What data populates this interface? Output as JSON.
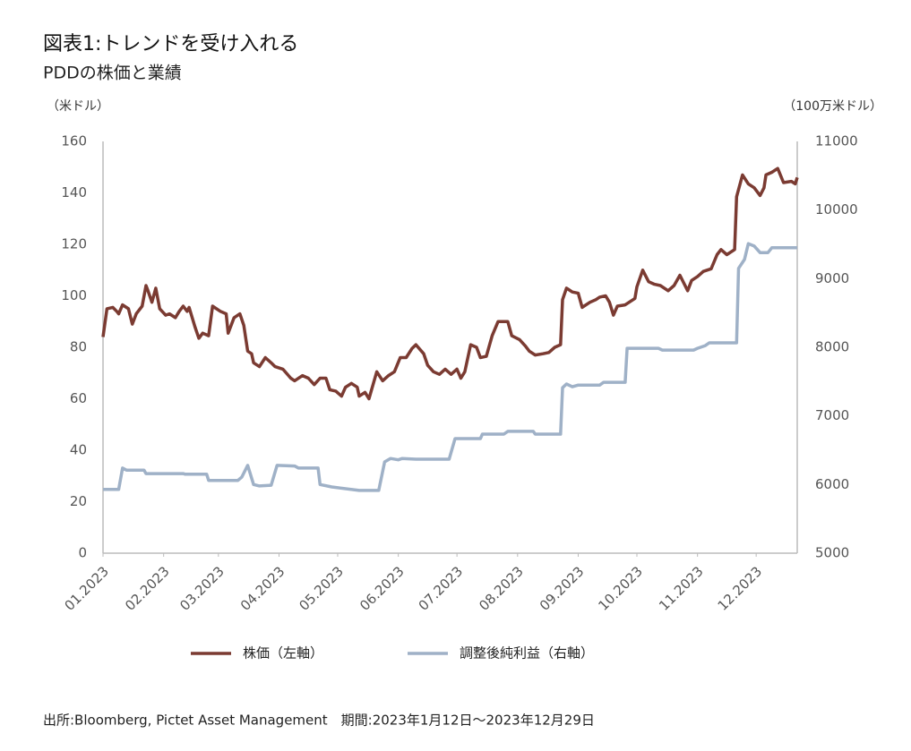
{
  "chart_data": {
    "type": "line",
    "title": "図表1:トレンドを受け入れる",
    "subtitle": "PDDの株価と業績",
    "y_label": "（米ドル）",
    "y2_label": "（100万米ドル）",
    "source": "出所:Bloomberg, Pictet Asset Management　期間:2023年1月12日～2023年12月29日",
    "xlim": [
      0,
      355
    ],
    "xticks": [
      {
        "value": 0,
        "label": "01.2023"
      },
      {
        "value": 31,
        "label": "02.2023"
      },
      {
        "value": 59,
        "label": "03.2023"
      },
      {
        "value": 90,
        "label": "04.2023"
      },
      {
        "value": 120,
        "label": "05.2023"
      },
      {
        "value": 151,
        "label": "06.2023"
      },
      {
        "value": 181,
        "label": "07.2023"
      },
      {
        "value": 212,
        "label": "08.2023"
      },
      {
        "value": 243,
        "label": "09.2023"
      },
      {
        "value": 273,
        "label": "10.2023"
      },
      {
        "value": 304,
        "label": "11.2023"
      },
      {
        "value": 334,
        "label": "12.2023"
      }
    ],
    "ylim": [
      0,
      160
    ],
    "yticks": [
      0,
      20,
      40,
      60,
      80,
      100,
      120,
      140,
      160
    ],
    "y2lim": [
      5000,
      11000
    ],
    "y2ticks": [
      5000,
      6000,
      7000,
      8000,
      9000,
      10000,
      11000
    ],
    "grid": false,
    "legend": "bottom",
    "series": [
      {
        "name": "株価（左軸）",
        "color": "#7b3b32",
        "x": [
          0,
          2,
          5,
          7,
          8,
          10,
          13,
          15,
          17,
          20,
          22,
          23,
          25,
          27,
          29,
          32,
          34,
          37,
          39,
          41,
          43,
          44,
          47,
          49,
          51,
          54,
          56,
          60,
          63,
          64,
          67,
          70,
          72,
          74,
          76,
          77,
          80,
          83,
          86,
          88,
          92,
          96,
          98,
          102,
          105,
          108,
          111,
          114,
          116,
          119,
          122,
          124,
          127,
          130,
          131,
          134,
          136,
          140,
          143,
          146,
          149,
          152,
          155,
          158,
          160,
          164,
          166,
          169,
          172,
          175,
          178,
          181,
          183,
          185,
          188,
          191,
          193,
          196,
          199,
          202,
          207,
          209,
          213,
          216,
          218,
          221,
          225,
          228,
          231,
          234,
          235,
          237,
          240,
          243,
          245,
          249,
          252,
          254,
          257,
          259,
          261,
          263,
          267,
          269,
          272,
          273,
          276,
          279,
          282,
          285,
          289,
          292,
          295,
          299,
          301,
          304,
          307,
          311,
          314,
          316,
          319,
          323,
          324,
          327,
          330,
          333,
          336,
          338,
          339,
          342,
          345,
          348,
          352,
          354,
          355
        ],
        "values": [
          84,
          95,
          95.5,
          94,
          93,
          96.5,
          95,
          89,
          93,
          96,
          104,
          102,
          97.5,
          103,
          95,
          92.5,
          93,
          91.5,
          94,
          96,
          94,
          95.5,
          88,
          83.5,
          85.5,
          84.5,
          96,
          94,
          93,
          85.5,
          91.5,
          93,
          88.5,
          78.5,
          77.5,
          74,
          72.5,
          76,
          74,
          72.5,
          71.5,
          68,
          67,
          69,
          68,
          65.5,
          68,
          68,
          63.5,
          63,
          61,
          64.5,
          66,
          64.5,
          61,
          62.5,
          60,
          70.5,
          67,
          69,
          70.5,
          76,
          76,
          79.5,
          81,
          77.5,
          73,
          70.5,
          69.5,
          71.5,
          69.5,
          71.5,
          68,
          70.5,
          81,
          80,
          76,
          76.5,
          84.5,
          90,
          90,
          84.5,
          83,
          80.5,
          78.5,
          77,
          77.5,
          78,
          80,
          81,
          98.5,
          103,
          101.5,
          101,
          95.5,
          97.5,
          98.5,
          99.5,
          100,
          97.5,
          92.5,
          96,
          96.5,
          97.5,
          99,
          103.5,
          110,
          105.5,
          104.5,
          104,
          102,
          104,
          108,
          102,
          106,
          107.5,
          109.5,
          110.5,
          116,
          118,
          116,
          118,
          138.5,
          147,
          143.5,
          142,
          139,
          142,
          147,
          148,
          149.5,
          144,
          144.5,
          143.5,
          146
        ]
      },
      {
        "name": "調整後純利益（右軸）",
        "color": "#9fb1c7",
        "axis": "y2",
        "x": [
          0,
          8,
          10,
          12,
          21,
          22,
          41,
          42,
          53,
          54,
          69,
          71,
          74,
          77,
          80,
          86,
          89,
          98,
          100,
          110,
          111,
          117,
          131,
          141,
          144,
          147,
          151,
          153,
          160,
          177,
          180,
          193,
          194,
          205,
          207,
          220,
          221,
          234,
          235,
          237,
          240,
          243,
          254,
          256,
          267,
          268,
          284,
          286,
          302,
          304,
          308,
          310,
          324,
          325,
          328,
          330,
          333,
          336,
          340,
          342,
          355
        ],
        "values": [
          5930,
          5930,
          6240,
          6210,
          6210,
          6160,
          6160,
          6150,
          6150,
          6060,
          6060,
          6110,
          6280,
          6000,
          5980,
          5990,
          6280,
          6270,
          6240,
          6240,
          6000,
          5965,
          5915,
          5915,
          6330,
          6380,
          6360,
          6380,
          6370,
          6370,
          6670,
          6670,
          6735,
          6735,
          6775,
          6775,
          6735,
          6735,
          7410,
          7465,
          7425,
          7450,
          7450,
          7490,
          7490,
          7985,
          7985,
          7960,
          7960,
          7985,
          8025,
          8065,
          8065,
          9150,
          9280,
          9510,
          9475,
          9380,
          9380,
          9450,
          9450
        ]
      }
    ]
  }
}
